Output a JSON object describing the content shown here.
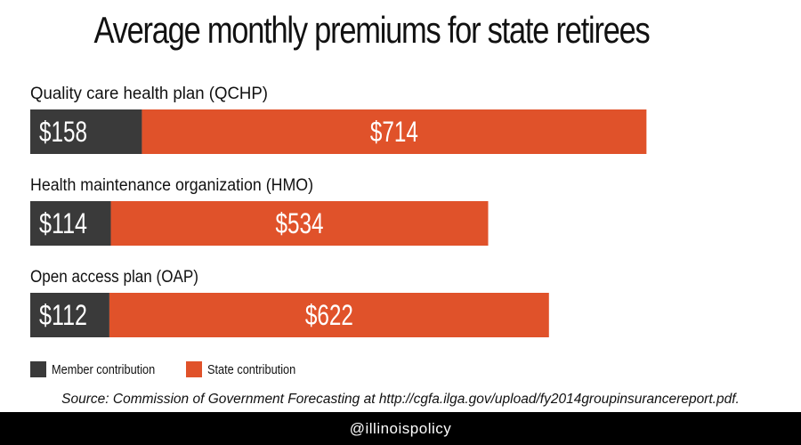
{
  "title": "Average monthly premiums for state retirees",
  "chart_data": {
    "type": "bar",
    "orientation": "horizontal",
    "stacked": true,
    "categories": [
      "Quality care health plan (QCHP)",
      "Health maintenance organization (HMO)",
      "Open access plan (OAP)"
    ],
    "series": [
      {
        "name": "Member contribution",
        "values": [
          158,
          114,
          112
        ],
        "labels": [
          "$158",
          "$114",
          "$112"
        ],
        "color": "#3a3a3a"
      },
      {
        "name": "State contribution",
        "values": [
          714,
          534,
          622
        ],
        "labels": [
          "$714",
          "$534",
          "$622"
        ],
        "color": "#e0522a"
      }
    ],
    "title": "Average monthly premiums for state retirees",
    "xlabel": "",
    "ylabel": "",
    "grid": false,
    "legend": "bottom-left"
  },
  "source": "Source: Commission of Government Forecasting at http://cgfa.ilga.gov/upload/fy2014groupinsurancereport.pdf.",
  "footer": {
    "handle": "@illinoispolicy"
  }
}
